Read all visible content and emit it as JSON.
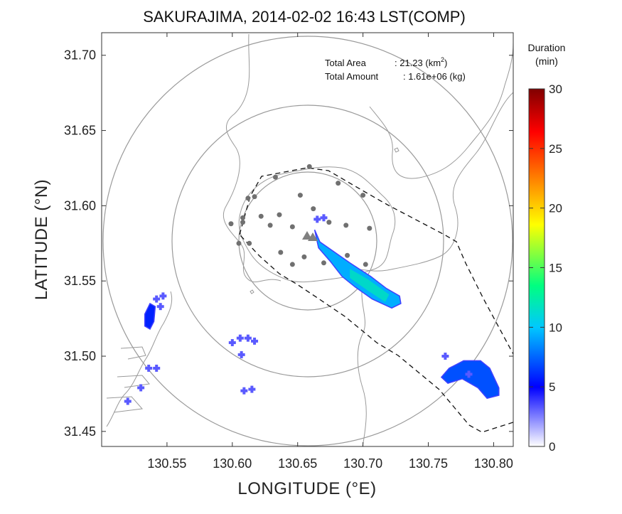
{
  "chart_data": {
    "type": "heatmap",
    "title": "SAKURAJIMA, 2014-02-02 16:43 LST(COMP)",
    "xlabel": "LONGITUDE (°E)",
    "ylabel": "LATITUDE (°N)",
    "xlim": [
      130.5,
      130.815
    ],
    "ylim": [
      31.44,
      31.715
    ],
    "x_ticks": [
      130.55,
      130.6,
      130.65,
      130.7,
      130.75,
      130.8
    ],
    "x_tick_labels": [
      "130.55",
      "130.60",
      "130.65",
      "130.70",
      "130.75",
      "130.80"
    ],
    "y_ticks": [
      31.45,
      31.5,
      31.55,
      31.6,
      31.65,
      31.7
    ],
    "y_tick_labels": [
      "31.45",
      "31.50",
      "31.55",
      "31.60",
      "31.65",
      "31.70"
    ],
    "grid": false,
    "info": {
      "total_area_label": "Total Area",
      "total_area_value": ": 21.23 (km",
      "total_area_sup": "2",
      "total_area_close": ")",
      "total_amount_label": "Total Amount",
      "total_amount_value": ": 1.61e+06 (kg)"
    },
    "colorbar": {
      "title_line1": "Duration",
      "title_line2": "(min)",
      "range": [
        0,
        30
      ],
      "ticks": [
        0,
        5,
        10,
        15,
        20,
        25,
        30
      ],
      "tick_labels": [
        "0",
        "5",
        "10",
        "15",
        "20",
        "25",
        "30"
      ],
      "colors": [
        "#ffffff",
        "#0000ff",
        "#00c8ff",
        "#00ff80",
        "#ffff00",
        "#ff8000",
        "#ff0000",
        "#800000"
      ]
    },
    "vent": {
      "lon": 130.657,
      "lat": 31.581
    },
    "range_rings_km": [
      5,
      10,
      15
    ],
    "stations": [
      [
        130.633,
        31.619
      ],
      [
        130.659,
        31.626
      ],
      [
        130.681,
        31.615
      ],
      [
        130.7,
        31.607
      ],
      [
        130.617,
        31.606
      ],
      [
        130.652,
        31.607
      ],
      [
        130.662,
        31.598
      ],
      [
        130.674,
        31.589
      ],
      [
        130.622,
        31.593
      ],
      [
        130.608,
        31.589
      ],
      [
        130.636,
        31.594
      ],
      [
        130.613,
        31.575
      ],
      [
        130.629,
        31.587
      ],
      [
        130.646,
        31.586
      ],
      [
        130.687,
        31.587
      ],
      [
        130.705,
        31.585
      ],
      [
        130.637,
        31.569
      ],
      [
        130.655,
        31.566
      ],
      [
        130.67,
        31.562
      ],
      [
        130.688,
        31.567
      ],
      [
        130.608,
        31.592
      ],
      [
        130.612,
        31.605
      ],
      [
        130.646,
        31.561
      ],
      [
        130.605,
        31.575
      ],
      [
        130.599,
        31.588
      ],
      [
        130.702,
        31.561
      ]
    ],
    "fallout_regions": [
      {
        "name": "plume-sakurajima-east",
        "polygon": [
          [
            130.663,
            31.584
          ],
          [
            130.667,
            31.576
          ],
          [
            130.69,
            31.562
          ],
          [
            130.706,
            31.553
          ],
          [
            130.718,
            31.545
          ],
          [
            130.728,
            31.54
          ],
          [
            130.729,
            31.535
          ],
          [
            130.722,
            31.532
          ],
          [
            130.707,
            31.538
          ],
          [
            130.694,
            31.546
          ],
          [
            130.684,
            31.553
          ],
          [
            130.675,
            31.563
          ],
          [
            130.666,
            31.572
          ]
        ],
        "core": [
          [
            130.69,
            31.558
          ],
          [
            130.704,
            31.551
          ],
          [
            130.72,
            31.541
          ],
          [
            130.717,
            31.536
          ],
          [
            130.703,
            31.544
          ],
          [
            130.69,
            31.552
          ]
        ],
        "duration_min": 8
      },
      {
        "name": "patch-east-southeast",
        "polygon": [
          [
            130.766,
            31.492
          ],
          [
            130.777,
            31.497
          ],
          [
            130.79,
            31.497
          ],
          [
            130.797,
            31.492
          ],
          [
            130.804,
            31.479
          ],
          [
            130.804,
            31.474
          ],
          [
            130.795,
            31.472
          ],
          [
            130.788,
            31.479
          ],
          [
            130.776,
            31.485
          ],
          [
            130.765,
            31.482
          ],
          [
            130.76,
            31.486
          ]
        ],
        "core": [],
        "duration_min": 6
      },
      {
        "name": "patch-west-coast",
        "polygon": [
          [
            130.537,
            31.535
          ],
          [
            130.541,
            31.533
          ],
          [
            130.54,
            31.523
          ],
          [
            130.537,
            31.518
          ],
          [
            130.533,
            31.52
          ],
          [
            130.533,
            31.528
          ]
        ],
        "core": [],
        "duration_min": 5
      }
    ],
    "speckles": [
      [
        130.542,
        31.538
      ],
      [
        130.547,
        31.54
      ],
      [
        130.545,
        31.533
      ],
      [
        130.536,
        31.492
      ],
      [
        130.542,
        31.492
      ],
      [
        130.53,
        31.479
      ],
      [
        130.52,
        31.47
      ],
      [
        130.6,
        31.509
      ],
      [
        130.606,
        31.512
      ],
      [
        130.612,
        31.512
      ],
      [
        130.617,
        31.51
      ],
      [
        130.607,
        31.501
      ],
      [
        130.609,
        31.477
      ],
      [
        130.615,
        31.478
      ],
      [
        130.665,
        31.591
      ],
      [
        130.67,
        31.592
      ],
      [
        130.763,
        31.5
      ],
      [
        130.781,
        31.488
      ]
    ]
  }
}
